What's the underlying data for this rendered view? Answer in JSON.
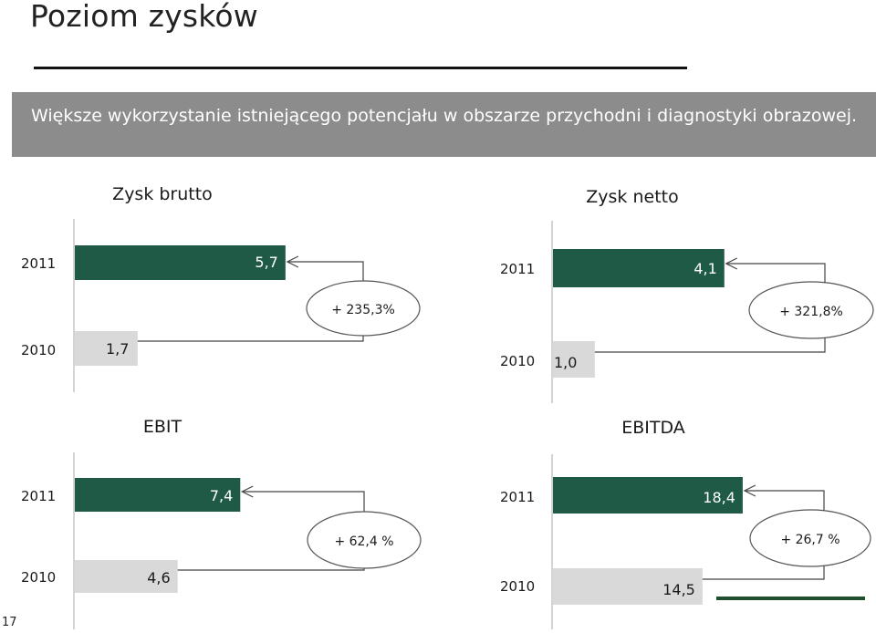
{
  "slide": {
    "title": "Poziom zysków",
    "banner": "Większe wykorzystanie istniejącego potencjału w obszarze przychodni i diagnostyki obrazowej.",
    "page_number": "17"
  },
  "colors": {
    "bar_current": "#1f5a46",
    "bar_previous": "#d9d9d9",
    "banner": "#8c8c8c",
    "bubble_stroke": "#555555",
    "accent_line": "#1f4f2d"
  },
  "chart_data": [
    {
      "type": "bar",
      "orientation": "horizontal",
      "title": "Zysk brutto",
      "categories": [
        "2011",
        "2010"
      ],
      "values": [
        5.7,
        1.7
      ],
      "value_labels": [
        "5,7",
        "1,7"
      ],
      "change_label": "+ 235,3%"
    },
    {
      "type": "bar",
      "orientation": "horizontal",
      "title": "Zysk netto",
      "categories": [
        "2011",
        "2010"
      ],
      "values": [
        4.1,
        1.0
      ],
      "value_labels": [
        "4,1",
        "1,0"
      ],
      "change_label": "+ 321,8%"
    },
    {
      "type": "bar",
      "orientation": "horizontal",
      "title": "EBIT",
      "categories": [
        "2011",
        "2010"
      ],
      "values": [
        7.4,
        4.6
      ],
      "value_labels": [
        "7,4",
        "4,6"
      ],
      "change_label": "+ 62,4 %"
    },
    {
      "type": "bar",
      "orientation": "horizontal",
      "title": "EBITDA",
      "categories": [
        "2011",
        "2010"
      ],
      "values": [
        18.4,
        14.5
      ],
      "value_labels": [
        "18,4",
        "14,5"
      ],
      "change_label": "+ 26,7 %"
    }
  ]
}
